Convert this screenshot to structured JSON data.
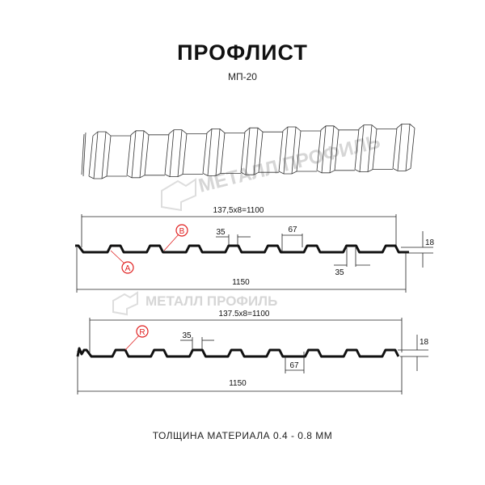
{
  "title": "ПРОФЛИСТ",
  "subtitle": "МП-20",
  "footer": "ТОЛЩИНА МАТЕРИАЛА 0.4 - 0.8 ММ",
  "watermark": "МЕТАЛЛ ПРОФИЛЬ",
  "accent_color": "#e02020",
  "profile_a": {
    "pitch_label": "137,5x8=1100",
    "width_label": "1150",
    "crest_label": "35",
    "valley_label": "67",
    "bottom_label": "35",
    "height_label": "18",
    "marker_a": "A",
    "marker_b": "B",
    "crests": 8
  },
  "profile_b": {
    "pitch_label": "137.5x8=1100",
    "width_label": "1150",
    "crest_label": "35",
    "valley_label": "67",
    "height_label": "18",
    "marker_r": "R",
    "crests": 8
  }
}
